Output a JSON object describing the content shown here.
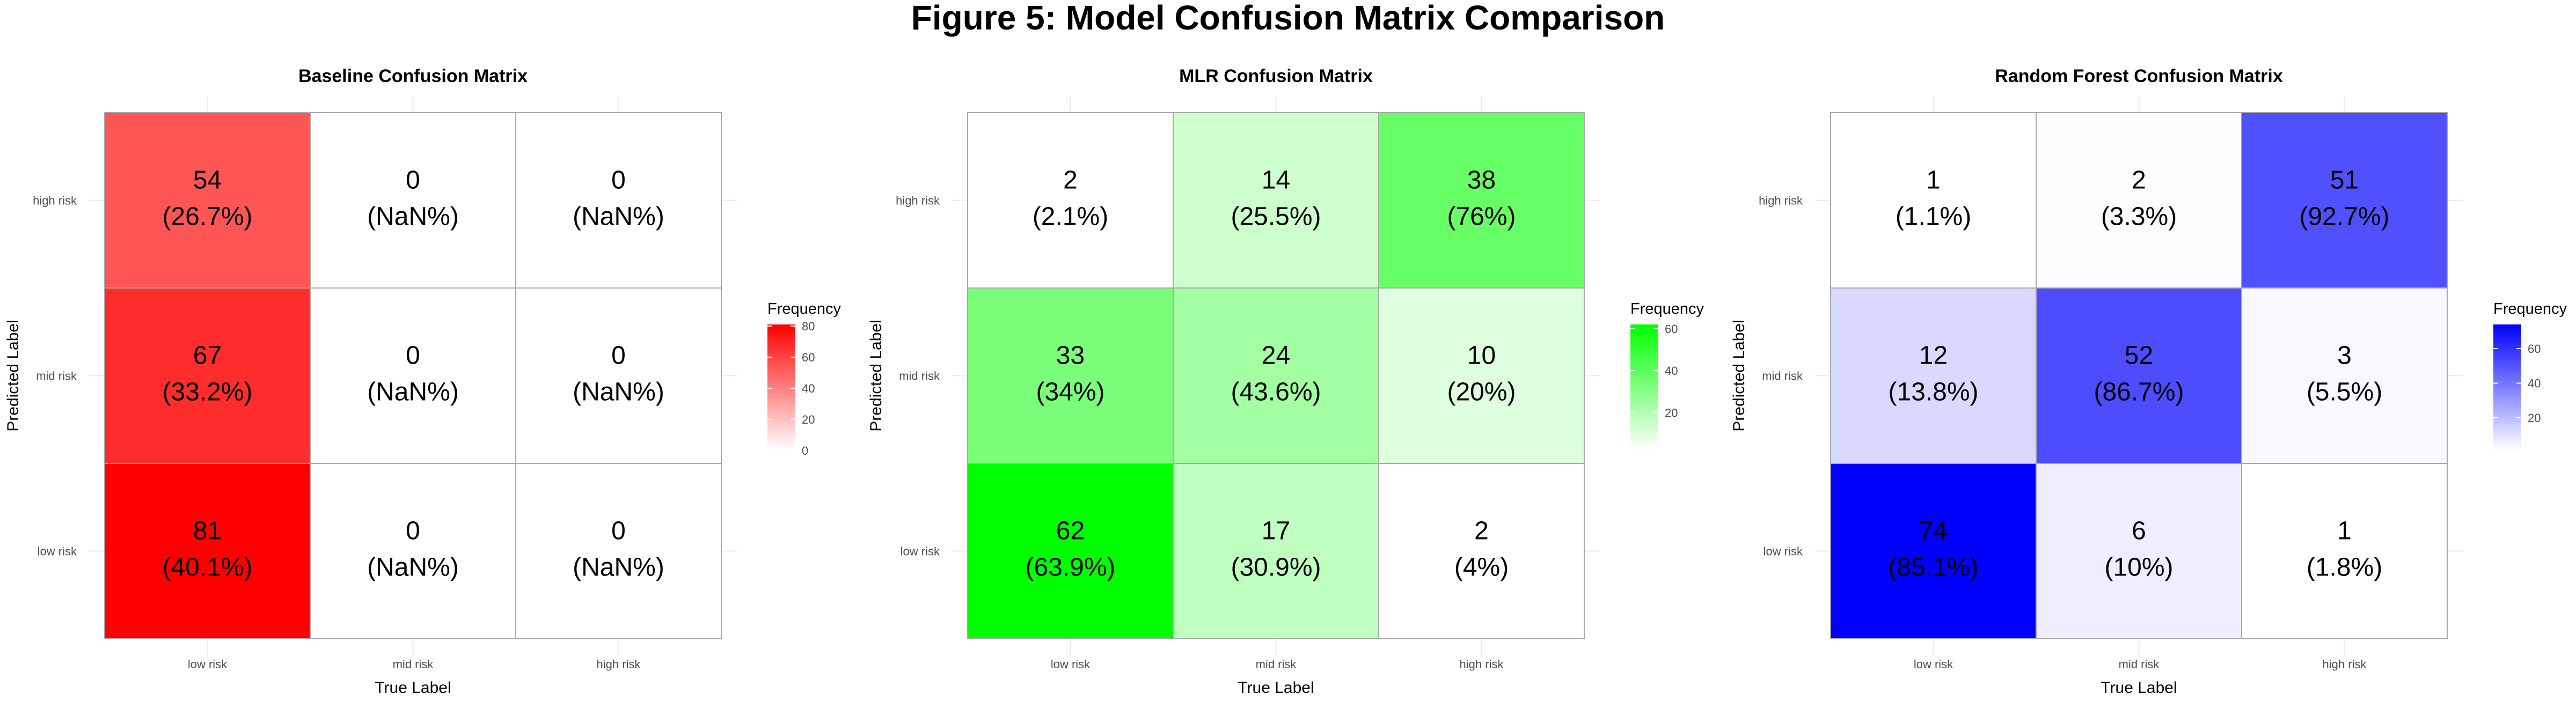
{
  "title": "Figure 5: Model Confusion Matrix Comparison",
  "chart_data": [
    {
      "type": "heatmap",
      "title": "Baseline Confusion Matrix",
      "xlabel": "True Label",
      "ylabel": "Predicted Label",
      "x_categories": [
        "low risk",
        "mid risk",
        "high risk"
      ],
      "y_categories": [
        "high risk",
        "mid risk",
        "low risk"
      ],
      "values": [
        [
          54,
          0,
          0
        ],
        [
          67,
          0,
          0
        ],
        [
          81,
          0,
          0
        ]
      ],
      "percent_labels": [
        [
          "(26.7%)",
          "(NaN%)",
          "(NaN%)"
        ],
        [
          "(33.2%)",
          "(NaN%)",
          "(NaN%)"
        ],
        [
          "(40.1%)",
          "(NaN%)",
          "(NaN%)"
        ]
      ],
      "legend_title": "Frequency",
      "legend_ticks": [
        80,
        60,
        40,
        20,
        0
      ],
      "color_range": [
        0,
        81
      ],
      "low_color": "#ffffff",
      "high_color": "#ff0000",
      "grid": true,
      "legend_position": "right"
    },
    {
      "type": "heatmap",
      "title": "MLR Confusion Matrix",
      "xlabel": "True Label",
      "ylabel": "Predicted Label",
      "x_categories": [
        "low risk",
        "mid risk",
        "high risk"
      ],
      "y_categories": [
        "high risk",
        "mid risk",
        "low risk"
      ],
      "values": [
        [
          2,
          14,
          38
        ],
        [
          33,
          24,
          10
        ],
        [
          62,
          17,
          2
        ]
      ],
      "percent_labels": [
        [
          "(2.1%)",
          "(25.5%)",
          "(76%)"
        ],
        [
          "(34%)",
          "(43.6%)",
          "(20%)"
        ],
        [
          "(63.9%)",
          "(30.9%)",
          "(4%)"
        ]
      ],
      "legend_title": "Frequency",
      "legend_ticks": [
        60,
        40,
        20
      ],
      "color_range": [
        2,
        62
      ],
      "low_color": "#ffffff",
      "high_color": "#00ff00",
      "grid": true,
      "legend_position": "right"
    },
    {
      "type": "heatmap",
      "title": "Random Forest Confusion Matrix",
      "xlabel": "True Label",
      "ylabel": "Predicted Label",
      "x_categories": [
        "low risk",
        "mid risk",
        "high risk"
      ],
      "y_categories": [
        "high risk",
        "mid risk",
        "low risk"
      ],
      "values": [
        [
          1,
          2,
          51
        ],
        [
          12,
          52,
          3
        ],
        [
          74,
          6,
          1
        ]
      ],
      "percent_labels": [
        [
          "(1.1%)",
          "(3.3%)",
          "(92.7%)"
        ],
        [
          "(13.8%)",
          "(86.7%)",
          "(5.5%)"
        ],
        [
          "(85.1%)",
          "(10%)",
          "(1.8%)"
        ]
      ],
      "legend_title": "Frequency",
      "legend_ticks": [
        60,
        40,
        20
      ],
      "color_range": [
        1,
        74
      ],
      "low_color": "#ffffff",
      "high_color": "#0000ff",
      "grid": true,
      "legend_position": "right"
    }
  ]
}
